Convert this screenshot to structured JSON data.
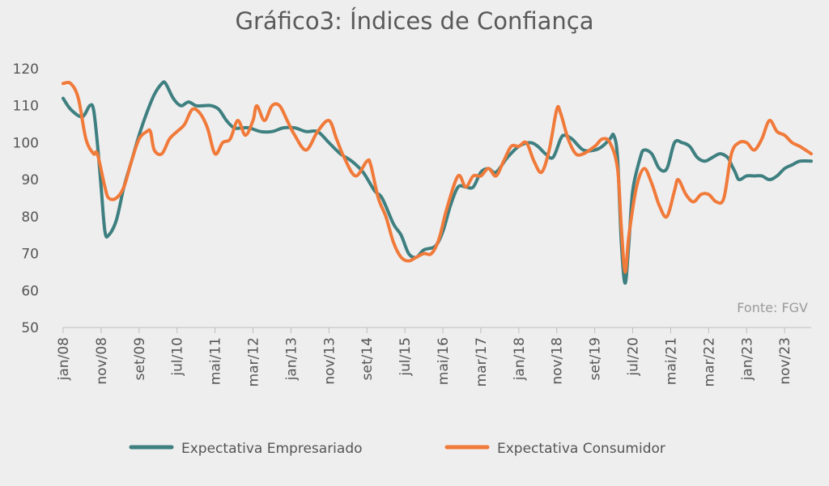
{
  "chart_data": {
    "type": "line",
    "title": "Gráfico3: Índices de Confiança",
    "source": "Fonte: FGV",
    "xlabel": "",
    "ylabel": "",
    "ylim": [
      50,
      120
    ],
    "yticks": [
      50,
      60,
      70,
      80,
      90,
      100,
      110,
      120
    ],
    "grid": false,
    "legend_position": "bottom",
    "xticks": [
      "jan/08",
      "nov/08",
      "set/09",
      "jul/10",
      "mai/11",
      "mar/12",
      "jan/13",
      "nov/13",
      "set/14",
      "jul/15",
      "mai/16",
      "mar/17",
      "jan/18",
      "nov/18",
      "set/19",
      "jul/20",
      "mai/21",
      "mar/22",
      "jan/23",
      "nov/23"
    ],
    "x_domain": [
      "jan/08",
      "jun/24"
    ],
    "series": [
      {
        "name": "Expectativa Empresariado",
        "color": "#3e7f80",
        "points": [
          [
            "jan/08",
            112
          ],
          [
            "mar/08",
            109
          ],
          [
            "jun/08",
            107
          ],
          [
            "ago/08",
            110
          ],
          [
            "set/08",
            109
          ],
          [
            "out/08",
            100
          ],
          [
            "nov/08",
            88
          ],
          [
            "dez/08",
            76
          ],
          [
            "jan/09",
            75
          ],
          [
            "mar/09",
            79
          ],
          [
            "mai/09",
            88
          ],
          [
            "jul/09",
            95
          ],
          [
            "set/09",
            102
          ],
          [
            "nov/09",
            108
          ],
          [
            "jan/10",
            113
          ],
          [
            "mar/10",
            116
          ],
          [
            "abr/10",
            116
          ],
          [
            "jun/10",
            112
          ],
          [
            "ago/10",
            110
          ],
          [
            "out/10",
            111
          ],
          [
            "dez/10",
            110
          ],
          [
            "fev/11",
            110
          ],
          [
            "abr/11",
            110
          ],
          [
            "jun/11",
            109
          ],
          [
            "ago/11",
            106
          ],
          [
            "out/11",
            104
          ],
          [
            "dez/11",
            104
          ],
          [
            "fev/12",
            104
          ],
          [
            "mai/12",
            103
          ],
          [
            "ago/12",
            103
          ],
          [
            "nov/12",
            104
          ],
          [
            "fev/13",
            104
          ],
          [
            "mai/13",
            103
          ],
          [
            "ago/13",
            103
          ],
          [
            "nov/13",
            100
          ],
          [
            "fev/14",
            97
          ],
          [
            "mai/14",
            95
          ],
          [
            "ago/14",
            92
          ],
          [
            "nov/14",
            87
          ],
          [
            "jan/15",
            85
          ],
          [
            "abr/15",
            78
          ],
          [
            "jun/15",
            75
          ],
          [
            "ago/15",
            70
          ],
          [
            "out/15",
            69
          ],
          [
            "dez/15",
            71
          ],
          [
            "mar/16",
            72
          ],
          [
            "mai/16",
            76
          ],
          [
            "jul/16",
            83
          ],
          [
            "set/16",
            88
          ],
          [
            "nov/16",
            88
          ],
          [
            "jan/17",
            88
          ],
          [
            "mar/17",
            92
          ],
          [
            "mai/17",
            93
          ],
          [
            "jul/17",
            92
          ],
          [
            "out/17",
            96
          ],
          [
            "jan/18",
            99
          ],
          [
            "abr/18",
            100
          ],
          [
            "jun/18",
            99
          ],
          [
            "ago/18",
            97
          ],
          [
            "out/18",
            96
          ],
          [
            "dez/18",
            101
          ],
          [
            "jan/19",
            102
          ],
          [
            "mar/19",
            101
          ],
          [
            "jun/19",
            98
          ],
          [
            "set/19",
            98
          ],
          [
            "nov/19",
            99
          ],
          [
            "jan/20",
            101
          ],
          [
            "fev/20",
            102
          ],
          [
            "mar/20",
            96
          ],
          [
            "abr/20",
            73
          ],
          [
            "mai/20",
            62
          ],
          [
            "jun/20",
            73
          ],
          [
            "jul/20",
            87
          ],
          [
            "set/20",
            96
          ],
          [
            "out/20",
            98
          ],
          [
            "dez/20",
            97
          ],
          [
            "fev/21",
            93
          ],
          [
            "abr/21",
            93
          ],
          [
            "jun/21",
            100
          ],
          [
            "ago/21",
            100
          ],
          [
            "out/21",
            99
          ],
          [
            "dez/21",
            96
          ],
          [
            "fev/22",
            95
          ],
          [
            "abr/22",
            96
          ],
          [
            "jun/22",
            97
          ],
          [
            "ago/22",
            96
          ],
          [
            "set/22",
            94
          ],
          [
            "out/22",
            92
          ],
          [
            "nov/22",
            90
          ],
          [
            "jan/23",
            91
          ],
          [
            "mar/23",
            91
          ],
          [
            "mai/23",
            91
          ],
          [
            "jul/23",
            90
          ],
          [
            "set/23",
            91
          ],
          [
            "nov/23",
            93
          ],
          [
            "jan/24",
            94
          ],
          [
            "mar/24",
            95
          ],
          [
            "jun/24",
            95
          ]
        ]
      },
      {
        "name": "Expectativa Consumidor",
        "color": "#f07a3a",
        "points": [
          [
            "jan/08",
            116
          ],
          [
            "mar/08",
            116
          ],
          [
            "mai/08",
            112
          ],
          [
            "jul/08",
            101
          ],
          [
            "set/08",
            97
          ],
          [
            "out/08",
            97
          ],
          [
            "dez/08",
            88
          ],
          [
            "jan/09",
            85
          ],
          [
            "mar/09",
            85
          ],
          [
            "mai/09",
            88
          ],
          [
            "jul/09",
            95
          ],
          [
            "set/09",
            101
          ],
          [
            "nov/09",
            103
          ],
          [
            "dez/09",
            103
          ],
          [
            "jan/10",
            98
          ],
          [
            "mar/10",
            97
          ],
          [
            "mai/10",
            101
          ],
          [
            "jul/10",
            103
          ],
          [
            "set/10",
            105
          ],
          [
            "nov/10",
            109
          ],
          [
            "jan/11",
            108
          ],
          [
            "mar/11",
            104
          ],
          [
            "mai/11",
            97
          ],
          [
            "jul/11",
            100
          ],
          [
            "set/11",
            101
          ],
          [
            "nov/11",
            106
          ],
          [
            "jan/12",
            102
          ],
          [
            "mar/12",
            106
          ],
          [
            "abr/12",
            110
          ],
          [
            "jun/12",
            106
          ],
          [
            "ago/12",
            110
          ],
          [
            "out/12",
            110
          ],
          [
            "dez/12",
            106
          ],
          [
            "fev/13",
            102
          ],
          [
            "mai/13",
            98
          ],
          [
            "ago/13",
            103
          ],
          [
            "nov/13",
            106
          ],
          [
            "jan/14",
            101
          ],
          [
            "mar/14",
            96
          ],
          [
            "jun/14",
            91
          ],
          [
            "set/14",
            95
          ],
          [
            "out/14",
            94
          ],
          [
            "dez/14",
            85
          ],
          [
            "fev/15",
            80
          ],
          [
            "abr/15",
            73
          ],
          [
            "jun/15",
            69
          ],
          [
            "ago/15",
            68
          ],
          [
            "out/15",
            69
          ],
          [
            "dez/15",
            70
          ],
          [
            "fev/16",
            70
          ],
          [
            "abr/16",
            74
          ],
          [
            "jun/16",
            82
          ],
          [
            "set/16",
            91
          ],
          [
            "nov/16",
            88
          ],
          [
            "jan/17",
            91
          ],
          [
            "mar/17",
            91
          ],
          [
            "mai/17",
            93
          ],
          [
            "jul/17",
            91
          ],
          [
            "set/17",
            95
          ],
          [
            "nov/17",
            99
          ],
          [
            "jan/18",
            99
          ],
          [
            "mar/18",
            100
          ],
          [
            "mai/18",
            95
          ],
          [
            "jul/18",
            92
          ],
          [
            "set/18",
            98
          ],
          [
            "nov/18",
            109
          ],
          [
            "dez/18",
            108
          ],
          [
            "fev/19",
            101
          ],
          [
            "abr/19",
            97
          ],
          [
            "jun/19",
            97
          ],
          [
            "set/19",
            99
          ],
          [
            "nov/19",
            101
          ],
          [
            "jan/20",
            100
          ],
          [
            "mar/20",
            93
          ],
          [
            "abr/20",
            77
          ],
          [
            "mai/20",
            65
          ],
          [
            "jun/20",
            75
          ],
          [
            "ago/20",
            88
          ],
          [
            "out/20",
            93
          ],
          [
            "dez/20",
            89
          ],
          [
            "fev/21",
            83
          ],
          [
            "abr/21",
            80
          ],
          [
            "jun/21",
            87
          ],
          [
            "jul/21",
            90
          ],
          [
            "set/21",
            86
          ],
          [
            "nov/21",
            84
          ],
          [
            "jan/22",
            86
          ],
          [
            "mar/22",
            86
          ],
          [
            "mai/22",
            84
          ],
          [
            "jul/22",
            85
          ],
          [
            "set/22",
            97
          ],
          [
            "nov/22",
            100
          ],
          [
            "jan/23",
            100
          ],
          [
            "mar/23",
            98
          ],
          [
            "mai/23",
            101
          ],
          [
            "jul/23",
            106
          ],
          [
            "set/23",
            103
          ],
          [
            "nov/23",
            102
          ],
          [
            "jan/24",
            100
          ],
          [
            "mar/24",
            99
          ],
          [
            "jun/24",
            97
          ]
        ]
      }
    ]
  }
}
